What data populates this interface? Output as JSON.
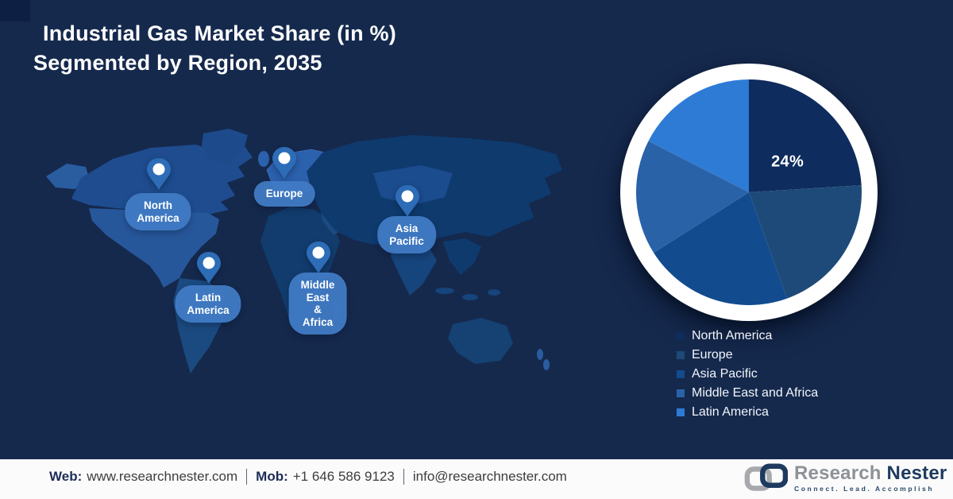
{
  "title": {
    "line1": "Industrial Gas Market Share (in %)",
    "line2": "Segmented by Region, 2035"
  },
  "map": {
    "pins": [
      {
        "id": "north-america",
        "label": "North\nAmerica"
      },
      {
        "id": "europe",
        "label": "Europe"
      },
      {
        "id": "asia-pacific",
        "label": "Asia\nPacific"
      },
      {
        "id": "middle-east-africa",
        "label": "Middle East\n& Africa"
      },
      {
        "id": "latin-america",
        "label": "Latin\nAmerica"
      }
    ]
  },
  "chart_data": {
    "type": "pie",
    "title": "Industrial Gas Market Share (in %) Segmented by Region, 2035",
    "categories": [
      "North America",
      "Europe",
      "Asia Pacific",
      "Middle East and Africa",
      "Latin America"
    ],
    "values": [
      24,
      20.5,
      21.5,
      16.5,
      17.5
    ],
    "colors": [
      "#0e2c5e",
      "#1d4a78",
      "#124c8e",
      "#2a62a8",
      "#2e7bd6"
    ],
    "display_labels": [
      "24%",
      "",
      "",
      "",
      ""
    ],
    "start_angle_deg": 0,
    "direction": "clockwise",
    "legend_position": "below-right"
  },
  "footer": {
    "web_label": "Web:",
    "web_value": "www.researchnester.com",
    "mob_label": "Mob:",
    "mob_value": "+1 646 586 9123",
    "email": "info@researchnester.com",
    "logo": {
      "brand_gray": "Research",
      "brand_navy": "Nester",
      "tagline": "Connect. Lead. Accomplish"
    }
  }
}
